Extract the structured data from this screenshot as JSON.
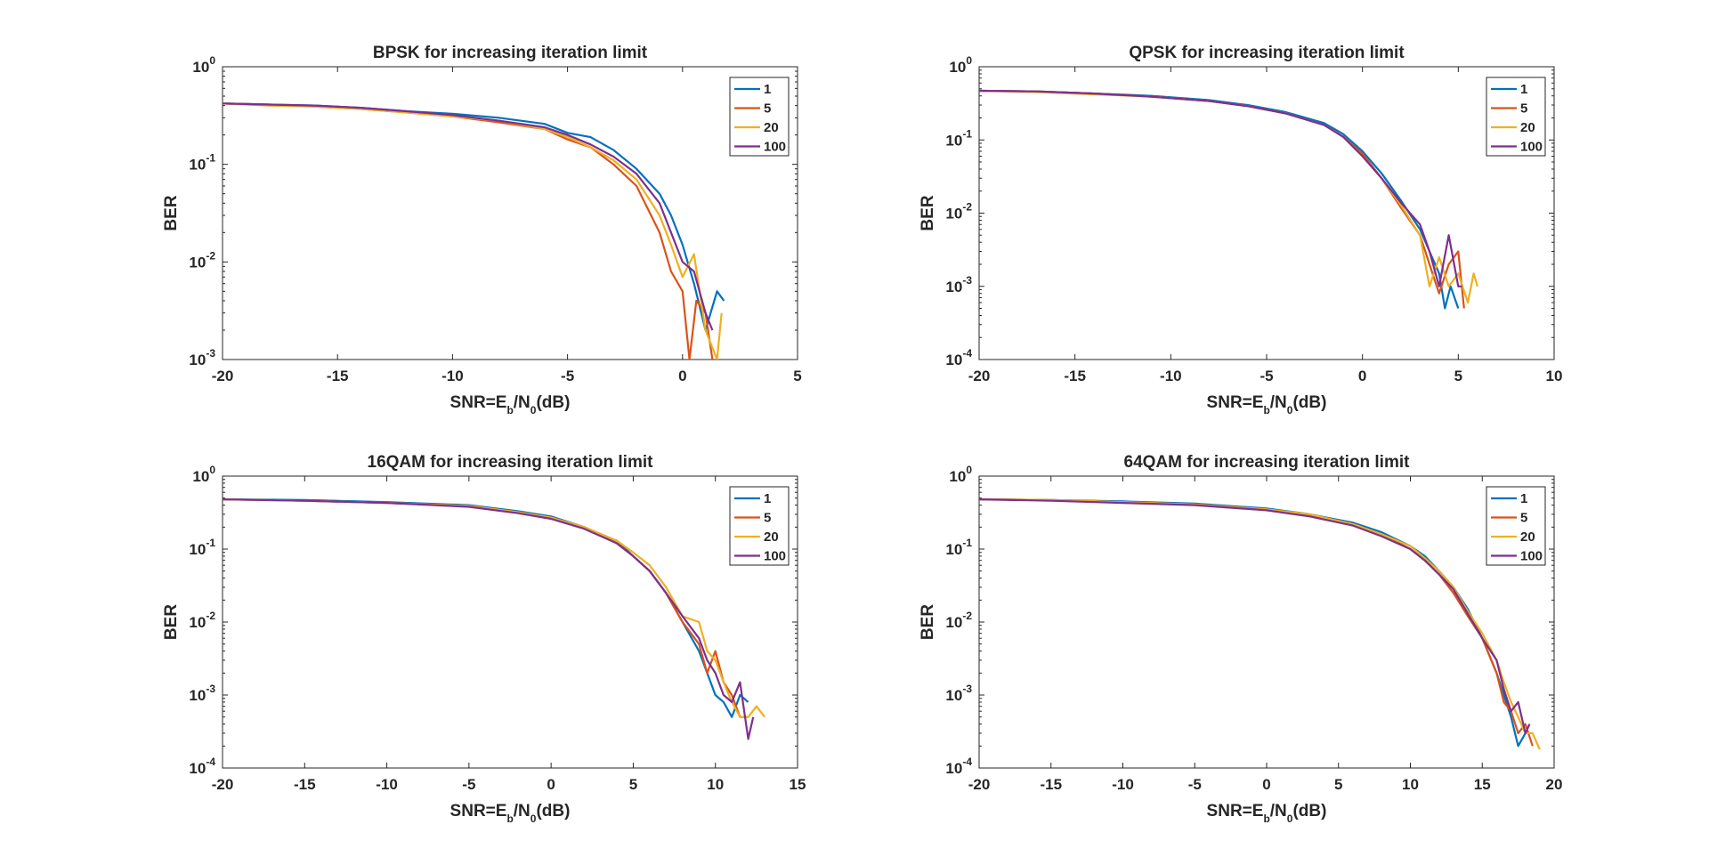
{
  "figure": {
    "background": "#ffffff"
  },
  "chart_data": [
    {
      "type": "line",
      "title": "BPSK for increasing iteration limit",
      "xlabel": {
        "prefix": "SNR=E",
        "sub1": "b",
        "mid": "/N",
        "sub2": "0",
        "suffix": "(dB)"
      },
      "ylabel": "BER",
      "xlim": [
        -20,
        5
      ],
      "ylim": [
        0.001,
        1
      ],
      "yscale": "log",
      "xticks": [
        -20,
        -15,
        -10,
        -5,
        0,
        5
      ],
      "yticks": [
        {
          "base": "10",
          "exp": "0"
        },
        {
          "base": "10",
          "exp": "-1"
        },
        {
          "base": "10",
          "exp": "-2"
        },
        {
          "base": "10",
          "exp": "-3"
        }
      ],
      "ytick_values": [
        1,
        0.1,
        0.01,
        0.001
      ],
      "legend": "top-right",
      "grid": false,
      "series": [
        {
          "name": "1",
          "color": "#0072BD",
          "x": [
            -20,
            -18,
            -16,
            -14,
            -12,
            -10,
            -8,
            -6,
            -5,
            -4,
            -3,
            -2,
            -1,
            -0.5,
            0,
            0.5,
            1,
            1.5,
            1.8
          ],
          "y": [
            0.42,
            0.41,
            0.4,
            0.38,
            0.35,
            0.33,
            0.3,
            0.26,
            0.21,
            0.19,
            0.14,
            0.09,
            0.05,
            0.03,
            0.015,
            0.006,
            0.002,
            0.005,
            0.004
          ]
        },
        {
          "name": "5",
          "color": "#D95319",
          "x": [
            -20,
            -18,
            -16,
            -14,
            -12,
            -10,
            -8,
            -6,
            -5,
            -4,
            -3,
            -2,
            -1,
            -0.5,
            0,
            0.3,
            0.6,
            1,
            1.3
          ],
          "y": [
            0.42,
            0.41,
            0.39,
            0.37,
            0.34,
            0.31,
            0.27,
            0.23,
            0.18,
            0.15,
            0.1,
            0.06,
            0.02,
            0.008,
            0.005,
            0.001,
            0.004,
            0.003,
            0.001
          ]
        },
        {
          "name": "20",
          "color": "#EDB120",
          "x": [
            -20,
            -18,
            -16,
            -14,
            -12,
            -10,
            -8,
            -6,
            -5,
            -4,
            -3,
            -2,
            -1,
            -0.5,
            0,
            0.5,
            1,
            1.5,
            1.7
          ],
          "y": [
            0.42,
            0.4,
            0.39,
            0.37,
            0.34,
            0.31,
            0.28,
            0.23,
            0.19,
            0.15,
            0.11,
            0.07,
            0.03,
            0.015,
            0.007,
            0.012,
            0.002,
            0.001,
            0.003
          ]
        },
        {
          "name": "100",
          "color": "#7E2F8E",
          "x": [
            -20,
            -18,
            -16,
            -14,
            -12,
            -10,
            -8,
            -6,
            -5,
            -4,
            -3,
            -2,
            -1,
            -0.5,
            0,
            0.5,
            1,
            1.3
          ],
          "y": [
            0.42,
            0.41,
            0.4,
            0.38,
            0.35,
            0.32,
            0.28,
            0.24,
            0.2,
            0.16,
            0.12,
            0.08,
            0.04,
            0.02,
            0.01,
            0.008,
            0.003,
            0.002
          ]
        }
      ]
    },
    {
      "type": "line",
      "title": "QPSK for increasing iteration limit",
      "xlabel": {
        "prefix": "SNR=E",
        "sub1": "b",
        "mid": "/N",
        "sub2": "0",
        "suffix": "(dB)"
      },
      "ylabel": "BER",
      "xlim": [
        -20,
        10
      ],
      "ylim": [
        0.0001,
        1
      ],
      "yscale": "log",
      "xticks": [
        -20,
        -15,
        -10,
        -5,
        0,
        5,
        10
      ],
      "yticks": [
        {
          "base": "10",
          "exp": "0"
        },
        {
          "base": "10",
          "exp": "-1"
        },
        {
          "base": "10",
          "exp": "-2"
        },
        {
          "base": "10",
          "exp": "-3"
        },
        {
          "base": "10",
          "exp": "-4"
        }
      ],
      "ytick_values": [
        1,
        0.1,
        0.01,
        0.001,
        0.0001
      ],
      "legend": "top-right",
      "grid": false,
      "series": [
        {
          "name": "1",
          "color": "#0072BD",
          "x": [
            -20,
            -17,
            -14,
            -11,
            -8,
            -6,
            -4,
            -2,
            -1,
            0,
            1,
            2,
            3,
            3.5,
            4,
            4.3,
            4.6,
            5
          ],
          "y": [
            0.47,
            0.46,
            0.43,
            0.4,
            0.35,
            0.3,
            0.24,
            0.17,
            0.12,
            0.07,
            0.035,
            0.015,
            0.006,
            0.003,
            0.0015,
            0.0005,
            0.001,
            0.0005
          ]
        },
        {
          "name": "5",
          "color": "#D95319",
          "x": [
            -20,
            -17,
            -14,
            -11,
            -8,
            -6,
            -4,
            -2,
            -1,
            0,
            1,
            2,
            3,
            3.5,
            4,
            4.5,
            5,
            5.3
          ],
          "y": [
            0.47,
            0.46,
            0.43,
            0.39,
            0.34,
            0.29,
            0.23,
            0.16,
            0.11,
            0.065,
            0.03,
            0.012,
            0.005,
            0.002,
            0.0008,
            0.002,
            0.003,
            0.0005
          ]
        },
        {
          "name": "20",
          "color": "#EDB120",
          "x": [
            -20,
            -17,
            -14,
            -11,
            -8,
            -6,
            -4,
            -2,
            -1,
            0,
            1,
            2,
            3,
            3.5,
            4,
            4.5,
            5,
            5.5,
            5.8,
            6
          ],
          "y": [
            0.47,
            0.45,
            0.42,
            0.39,
            0.34,
            0.29,
            0.23,
            0.16,
            0.11,
            0.06,
            0.03,
            0.013,
            0.005,
            0.001,
            0.0025,
            0.001,
            0.0015,
            0.0006,
            0.0015,
            0.001
          ]
        },
        {
          "name": "100",
          "color": "#7E2F8E",
          "x": [
            -20,
            -17,
            -14,
            -11,
            -8,
            -6,
            -4,
            -2,
            -1,
            0,
            1,
            2,
            3,
            3.5,
            4,
            4.5,
            5,
            5.2
          ],
          "y": [
            0.47,
            0.46,
            0.43,
            0.39,
            0.34,
            0.29,
            0.23,
            0.16,
            0.11,
            0.06,
            0.03,
            0.014,
            0.007,
            0.003,
            0.001,
            0.005,
            0.001,
            0.001
          ]
        }
      ]
    },
    {
      "type": "line",
      "title": "16QAM for increasing iteration limit",
      "xlabel": {
        "prefix": "SNR=E",
        "sub1": "b",
        "mid": "/N",
        "sub2": "0",
        "suffix": "(dB)"
      },
      "ylabel": "BER",
      "xlim": [
        -20,
        15
      ],
      "ylim": [
        0.0001,
        1
      ],
      "yscale": "log",
      "xticks": [
        -20,
        -15,
        -10,
        -5,
        0,
        5,
        10,
        15
      ],
      "yticks": [
        {
          "base": "10",
          "exp": "0"
        },
        {
          "base": "10",
          "exp": "-1"
        },
        {
          "base": "10",
          "exp": "-2"
        },
        {
          "base": "10",
          "exp": "-3"
        },
        {
          "base": "10",
          "exp": "-4"
        }
      ],
      "ytick_values": [
        1,
        0.1,
        0.01,
        0.001,
        0.0001
      ],
      "legend": "top-right",
      "grid": false,
      "series": [
        {
          "name": "1",
          "color": "#0072BD",
          "x": [
            -20,
            -15,
            -10,
            -5,
            -2,
            0,
            2,
            4,
            5,
            6,
            7,
            8,
            9,
            9.5,
            10,
            10.5,
            11,
            11.5,
            12
          ],
          "y": [
            0.48,
            0.47,
            0.44,
            0.4,
            0.33,
            0.28,
            0.2,
            0.13,
            0.08,
            0.05,
            0.025,
            0.01,
            0.004,
            0.002,
            0.001,
            0.0008,
            0.0005,
            0.001,
            0.0008
          ]
        },
        {
          "name": "5",
          "color": "#D95319",
          "x": [
            -20,
            -15,
            -10,
            -5,
            -2,
            0,
            2,
            4,
            5,
            6,
            7,
            8,
            9,
            9.5,
            10,
            10.5,
            11,
            11.5,
            12
          ],
          "y": [
            0.48,
            0.46,
            0.43,
            0.39,
            0.32,
            0.27,
            0.2,
            0.12,
            0.08,
            0.05,
            0.025,
            0.01,
            0.005,
            0.002,
            0.004,
            0.0015,
            0.001,
            0.0005,
            0.0005
          ]
        },
        {
          "name": "20",
          "color": "#EDB120",
          "x": [
            -20,
            -15,
            -10,
            -5,
            -2,
            0,
            2,
            4,
            5,
            6,
            7,
            8,
            9,
            9.5,
            10,
            10.5,
            11,
            11.5,
            12,
            12.5,
            13
          ],
          "y": [
            0.48,
            0.46,
            0.43,
            0.39,
            0.32,
            0.27,
            0.2,
            0.13,
            0.09,
            0.06,
            0.03,
            0.012,
            0.01,
            0.004,
            0.003,
            0.0015,
            0.0008,
            0.0005,
            0.0005,
            0.0007,
            0.0005
          ]
        },
        {
          "name": "100",
          "color": "#7E2F8E",
          "x": [
            -20,
            -15,
            -10,
            -5,
            -2,
            0,
            2,
            4,
            5,
            6,
            7,
            8,
            9,
            9.5,
            10,
            10.5,
            11,
            11.5,
            12,
            12.3
          ],
          "y": [
            0.48,
            0.46,
            0.43,
            0.38,
            0.31,
            0.26,
            0.19,
            0.12,
            0.08,
            0.05,
            0.025,
            0.012,
            0.006,
            0.003,
            0.002,
            0.001,
            0.0008,
            0.0015,
            0.00025,
            0.0005
          ]
        }
      ]
    },
    {
      "type": "line",
      "title": "64QAM for increasing iteration limit",
      "xlabel": {
        "prefix": "SNR=E",
        "sub1": "b",
        "mid": "/N",
        "sub2": "0",
        "suffix": "(dB)"
      },
      "ylabel": "BER",
      "xlim": [
        -20,
        20
      ],
      "ylim": [
        0.0001,
        1
      ],
      "yscale": "log",
      "xticks": [
        -20,
        -15,
        -10,
        -5,
        0,
        5,
        10,
        15,
        20
      ],
      "yticks": [
        {
          "base": "10",
          "exp": "0"
        },
        {
          "base": "10",
          "exp": "-1"
        },
        {
          "base": "10",
          "exp": "-2"
        },
        {
          "base": "10",
          "exp": "-3"
        },
        {
          "base": "10",
          "exp": "-4"
        }
      ],
      "ytick_values": [
        1,
        0.1,
        0.01,
        0.001,
        0.0001
      ],
      "legend": "top-right",
      "grid": false,
      "series": [
        {
          "name": "1",
          "color": "#0072BD",
          "x": [
            -20,
            -15,
            -10,
            -5,
            0,
            3,
            6,
            8,
            10,
            11,
            12,
            13,
            14,
            15,
            16,
            16.5,
            17,
            17.5,
            18
          ],
          "y": [
            0.48,
            0.47,
            0.45,
            0.42,
            0.36,
            0.3,
            0.23,
            0.17,
            0.11,
            0.08,
            0.05,
            0.03,
            0.015,
            0.006,
            0.002,
            0.001,
            0.0005,
            0.0002,
            0.0003
          ]
        },
        {
          "name": "5",
          "color": "#D95319",
          "x": [
            -20,
            -15,
            -10,
            -5,
            0,
            3,
            6,
            8,
            10,
            11,
            12,
            13,
            14,
            15,
            16,
            16.5,
            17,
            17.5,
            18,
            18.5
          ],
          "y": [
            0.48,
            0.47,
            0.44,
            0.41,
            0.35,
            0.29,
            0.22,
            0.16,
            0.1,
            0.07,
            0.045,
            0.025,
            0.012,
            0.006,
            0.002,
            0.0008,
            0.0006,
            0.0003,
            0.0004,
            0.0002
          ]
        },
        {
          "name": "20",
          "color": "#EDB120",
          "x": [
            -20,
            -15,
            -10,
            -5,
            0,
            3,
            6,
            8,
            10,
            11,
            12,
            13,
            14,
            15,
            16,
            16.5,
            17,
            17.5,
            18,
            18.5,
            19
          ],
          "y": [
            0.48,
            0.47,
            0.44,
            0.41,
            0.35,
            0.3,
            0.22,
            0.16,
            0.11,
            0.075,
            0.05,
            0.03,
            0.014,
            0.007,
            0.003,
            0.0015,
            0.0008,
            0.0005,
            0.0003,
            0.0003,
            0.00018
          ]
        },
        {
          "name": "100",
          "color": "#7E2F8E",
          "x": [
            -20,
            -15,
            -10,
            -5,
            0,
            3,
            6,
            8,
            10,
            11,
            12,
            13,
            14,
            15,
            16,
            16.5,
            17,
            17.5,
            18,
            18.3
          ],
          "y": [
            0.48,
            0.46,
            0.43,
            0.4,
            0.34,
            0.28,
            0.21,
            0.15,
            0.1,
            0.07,
            0.045,
            0.028,
            0.013,
            0.006,
            0.003,
            0.0012,
            0.0006,
            0.0008,
            0.0003,
            0.0004
          ]
        }
      ]
    }
  ]
}
